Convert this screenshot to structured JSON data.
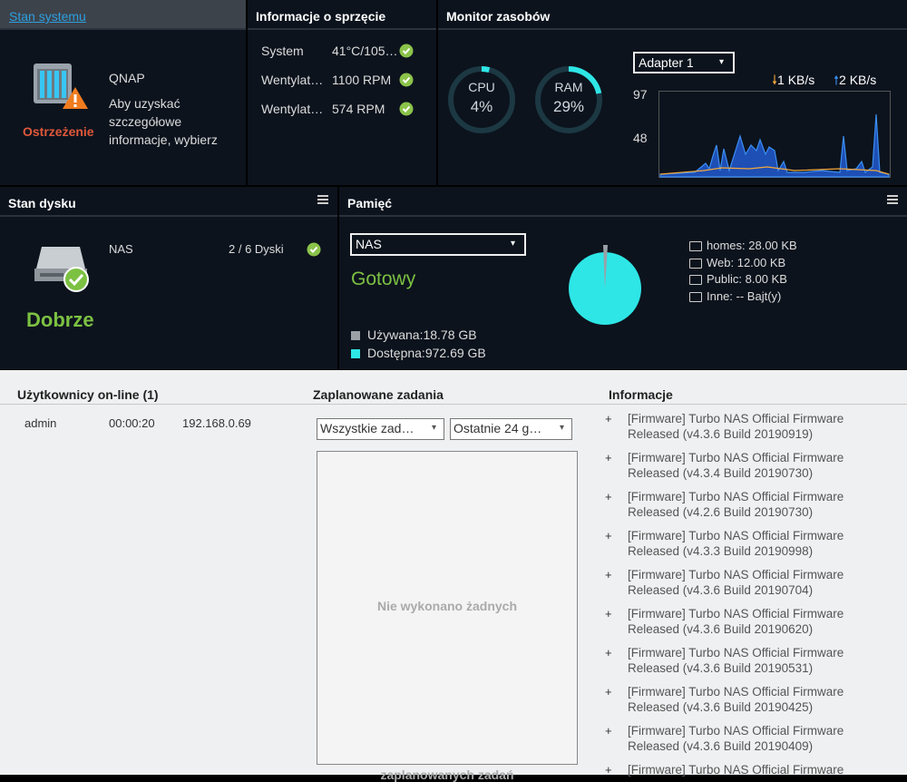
{
  "system_status": {
    "title": "Stan systemu",
    "brand": "QNAP",
    "message": "Aby uzyskać szczegółowe informacje, wybierz",
    "status": "Ostrzeżenie"
  },
  "hardware": {
    "title": "Informacje o sprzęcie",
    "rows": [
      [
        "System",
        "41°C/105…"
      ],
      [
        "Wentylat…",
        "1100 RPM"
      ],
      [
        "Wentylat…",
        "574 RPM"
      ]
    ]
  },
  "resources": {
    "title": "Monitor zasobów",
    "gauges": [
      {
        "label": "CPU",
        "value": "4%"
      },
      {
        "label": "RAM",
        "value": "29%"
      }
    ],
    "adapter": "Adapter 1",
    "download": "1 KB/s",
    "upload": "2 KB/s",
    "axis": [
      "97",
      "48"
    ]
  },
  "disk": {
    "title": "Stan dysku",
    "name": "NAS",
    "disks": "2 / 6 Dyski",
    "status": "Dobrze"
  },
  "storage": {
    "title": "Pamięć",
    "volume": "NAS",
    "status": "Gotowy",
    "folders": [
      "homes: 28.00 KB",
      "Web: 12.00 KB",
      "Public: 8.00 KB",
      "Inne: -- Bajt(y)"
    ],
    "used": "Używana:18.78 GB",
    "free": "Dostępna:972.69 GB"
  },
  "users": {
    "title": "Użytkownicy on-line (1)",
    "rows": [
      [
        "admin",
        "00:00:20",
        "192.168.0.69"
      ]
    ]
  },
  "tasks": {
    "title": "Zaplanowane zadania",
    "filters": [
      "Wszystkie zad…",
      "Ostatnie 24 g…"
    ],
    "empty": [
      "Nie wykonano żadnych",
      "zaplanowanych zadań"
    ]
  },
  "info": {
    "title": "Informacje",
    "items": [
      {
        "title": "[Firmware] Turbo NAS Official Firmware",
        "detail": "Released (v4.3.6 Build 20190919)"
      },
      {
        "title": "[Firmware] Turbo NAS Official Firmware",
        "detail": "Released (v4.3.4 Build 20190730)"
      },
      {
        "title": "[Firmware] Turbo NAS Official Firmware",
        "detail": "Released (v4.2.6 Build 20190730)"
      },
      {
        "title": "[Firmware] Turbo NAS Official Firmware",
        "detail": "Released (v4.3.3 Build 20190998)"
      },
      {
        "title": "[Firmware] Turbo NAS Official Firmware",
        "detail": "Released (v4.3.6 Build 20190704)"
      },
      {
        "title": "[Firmware] Turbo NAS Official Firmware",
        "detail": "Released (v4.3.6 Build 20190620)"
      },
      {
        "title": "[Firmware] Turbo NAS Official Firmware",
        "detail": "Released (v4.3.6 Build 20190531)"
      },
      {
        "title": "[Firmware] Turbo NAS Official Firmware",
        "detail": "Released (v4.3.6 Build 20190425)"
      },
      {
        "title": "[Firmware] Turbo NAS Official Firmware",
        "detail": "Released (v4.3.6 Build 20190409)"
      },
      {
        "title": "[Firmware] Turbo NAS Official Firmware"
      }
    ]
  }
}
